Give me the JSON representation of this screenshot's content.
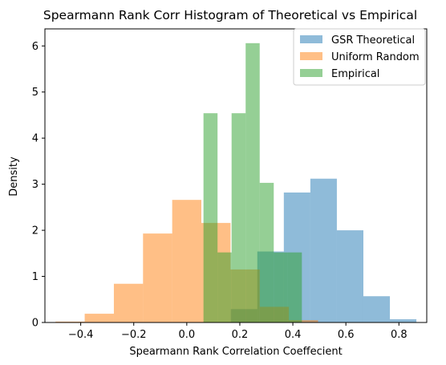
{
  "chart_data": {
    "type": "histogram",
    "title": "Spearmann Rank Corr Histogram of Theoretical vs Empirical",
    "xlabel": "Spearmann Rank Correlation Coeffecient",
    "ylabel": "Density",
    "xlim": [
      -0.535,
      0.905
    ],
    "ylim": [
      0,
      6.37
    ],
    "xticks": [
      -0.4,
      -0.2,
      0.0,
      0.2,
      0.4,
      0.6,
      0.8
    ],
    "xtick_labels": [
      "−0.4",
      "−0.2",
      "0.0",
      "0.2",
      "0.4",
      "0.6",
      "0.8"
    ],
    "yticks": [
      0,
      1,
      2,
      3,
      4,
      5,
      6
    ],
    "ytick_labels": [
      "0",
      "1",
      "2",
      "3",
      "4",
      "5",
      "6"
    ],
    "grid": false,
    "legend_position": "top-right",
    "series": [
      {
        "name": "GSR Theoretical",
        "color": "#1f77b4",
        "bins": [
          {
            "x0": 0.066,
            "x1": 0.166,
            "density": 0.0
          },
          {
            "x0": 0.166,
            "x1": 0.266,
            "density": 0.29
          },
          {
            "x0": 0.266,
            "x1": 0.366,
            "density": 1.54
          },
          {
            "x0": 0.366,
            "x1": 0.466,
            "density": 2.82
          },
          {
            "x0": 0.466,
            "x1": 0.566,
            "density": 3.12
          },
          {
            "x0": 0.566,
            "x1": 0.666,
            "density": 2.0
          },
          {
            "x0": 0.666,
            "x1": 0.766,
            "density": 0.57
          },
          {
            "x0": 0.766,
            "x1": 0.866,
            "density": 0.07
          }
        ]
      },
      {
        "name": "Uniform Random",
        "color": "#ff7f0e",
        "bins": [
          {
            "x0": -0.495,
            "x1": -0.385,
            "density": 0.02
          },
          {
            "x0": -0.385,
            "x1": -0.275,
            "density": 0.19
          },
          {
            "x0": -0.275,
            "x1": -0.165,
            "density": 0.84
          },
          {
            "x0": -0.165,
            "x1": -0.055,
            "density": 1.93
          },
          {
            "x0": -0.055,
            "x1": 0.055,
            "density": 2.66
          },
          {
            "x0": 0.055,
            "x1": 0.165,
            "density": 2.16
          },
          {
            "x0": 0.165,
            "x1": 0.275,
            "density": 1.15
          },
          {
            "x0": 0.275,
            "x1": 0.385,
            "density": 0.34
          },
          {
            "x0": 0.385,
            "x1": 0.495,
            "density": 0.05
          }
        ]
      },
      {
        "name": "Empirical",
        "color": "#2ca02c",
        "bins": [
          {
            "x0": 0.063,
            "x1": 0.116,
            "density": 4.54
          },
          {
            "x0": 0.116,
            "x1": 0.169,
            "density": 1.52
          },
          {
            "x0": 0.169,
            "x1": 0.222,
            "density": 4.54
          },
          {
            "x0": 0.222,
            "x1": 0.275,
            "density": 6.06
          },
          {
            "x0": 0.275,
            "x1": 0.328,
            "density": 3.03
          },
          {
            "x0": 0.328,
            "x1": 0.381,
            "density": 1.52
          },
          {
            "x0": 0.381,
            "x1": 0.434,
            "density": 1.52
          }
        ]
      }
    ]
  }
}
